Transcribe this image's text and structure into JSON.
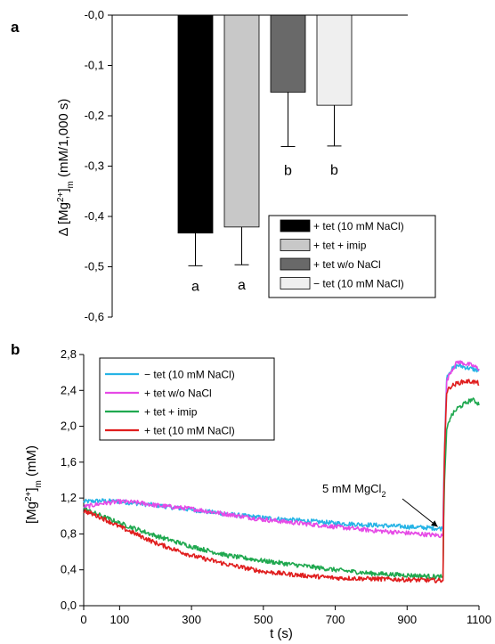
{
  "chart_data": [
    {
      "type": "bar",
      "panel_label": "a",
      "ylabel": "Δ [Mg2+]m (mM/1,000 s)",
      "ylabel_parts": {
        "delta": "Δ",
        "mg": "[Mg",
        "charge": "2+",
        "close": "]",
        "sub": "m",
        "unit": " (mM/1,000 s)"
      },
      "ylim": [
        -0.6,
        0.0
      ],
      "yticks": [
        "-0,0",
        "-0,1",
        "-0,2",
        "-0,3",
        "-0,4",
        "-0,5",
        "-0,6"
      ],
      "ytick_values": [
        0.0,
        -0.1,
        -0.2,
        -0.3,
        -0.4,
        -0.5,
        -0.6
      ],
      "categories": [
        "+ tet (10 mM NaCl)",
        "+ tet + imip",
        "+ tet w/o NaCl",
        "− tet (10 mM NaCl)"
      ],
      "values": [
        -0.433,
        -0.421,
        -0.153,
        -0.179
      ],
      "errors": [
        0.065,
        0.075,
        0.108,
        0.081
      ],
      "letters": [
        "a",
        "a",
        "b",
        "b"
      ],
      "colors": [
        "#000000",
        "#c8c8c8",
        "#696969",
        "#efefef"
      ],
      "legend": {
        "placement": "bottom-right",
        "entries": [
          "+ tet (10 mM NaCl)",
          "+ tet + imip",
          "+ tet w/o NaCl",
          "− tet (10 mM NaCl)"
        ]
      },
      "grid": false
    },
    {
      "type": "line",
      "panel_label": "b",
      "xlabel": "t (s)",
      "ylabel": "[Mg2+]m (mM)",
      "ylabel_parts": {
        "mg": "[Mg",
        "charge": "2+",
        "close": "]",
        "sub": "m",
        "unit": " (mM)"
      },
      "xlim": [
        0,
        1100
      ],
      "ylim": [
        0.0,
        2.8
      ],
      "xticks": [
        "0",
        "100",
        "300",
        "500",
        "700",
        "900",
        "1100"
      ],
      "xtick_values": [
        0,
        100,
        300,
        500,
        700,
        900,
        1100
      ],
      "yticks": [
        "0,0",
        "0,4",
        "0,8",
        "1,2",
        "1,6",
        "2,0",
        "2,4",
        "2,8"
      ],
      "ytick_values": [
        0.0,
        0.4,
        0.8,
        1.2,
        1.6,
        2.0,
        2.4,
        2.8
      ],
      "annotation": {
        "text_main": "5 mM MgCl",
        "text_sub": "2",
        "x": 1000,
        "y": 0.88
      },
      "legend": {
        "placement": "top-left"
      },
      "grid": false,
      "series": [
        {
          "name": "− tet (10 mM NaCl)",
          "color": "#27b4e6",
          "x": [
            0,
            50,
            100,
            200,
            300,
            400,
            500,
            600,
            700,
            800,
            900,
            1000,
            1003,
            1010,
            1020,
            1040,
            1060,
            1080,
            1100
          ],
          "y": [
            1.16,
            1.17,
            1.16,
            1.12,
            1.07,
            1.02,
            0.98,
            0.95,
            0.92,
            0.9,
            0.88,
            0.86,
            1.6,
            2.55,
            2.62,
            2.68,
            2.66,
            2.64,
            2.62
          ]
        },
        {
          "name": "+ tet w/o NaCl",
          "color": "#e64ae6",
          "x": [
            0,
            50,
            100,
            150,
            200,
            300,
            400,
            500,
            600,
            700,
            800,
            900,
            1000,
            1003,
            1010,
            1020,
            1040,
            1060,
            1080,
            1100
          ],
          "y": [
            1.1,
            1.14,
            1.16,
            1.15,
            1.12,
            1.08,
            1.02,
            0.96,
            0.92,
            0.88,
            0.84,
            0.81,
            0.78,
            1.5,
            2.5,
            2.6,
            2.72,
            2.7,
            2.68,
            2.64
          ]
        },
        {
          "name": "+ tet + imip",
          "color": "#1fa84f",
          "x": [
            0,
            50,
            100,
            200,
            300,
            400,
            500,
            600,
            700,
            800,
            900,
            1000,
            1003,
            1010,
            1020,
            1040,
            1060,
            1080,
            1100
          ],
          "y": [
            1.08,
            1.0,
            0.92,
            0.78,
            0.66,
            0.56,
            0.5,
            0.45,
            0.4,
            0.36,
            0.34,
            0.32,
            1.3,
            1.95,
            2.1,
            2.2,
            2.25,
            2.3,
            2.25
          ]
        },
        {
          "name": "+ tet (10 mM NaCl)",
          "color": "#e01e1e",
          "x": [
            0,
            50,
            100,
            200,
            300,
            400,
            500,
            600,
            700,
            800,
            900,
            1000,
            1003,
            1010,
            1020,
            1040,
            1060,
            1080,
            1100
          ],
          "y": [
            1.06,
            0.98,
            0.88,
            0.7,
            0.56,
            0.46,
            0.38,
            0.34,
            0.31,
            0.3,
            0.29,
            0.28,
            1.6,
            2.38,
            2.44,
            2.48,
            2.5,
            2.5,
            2.48
          ]
        }
      ]
    }
  ]
}
